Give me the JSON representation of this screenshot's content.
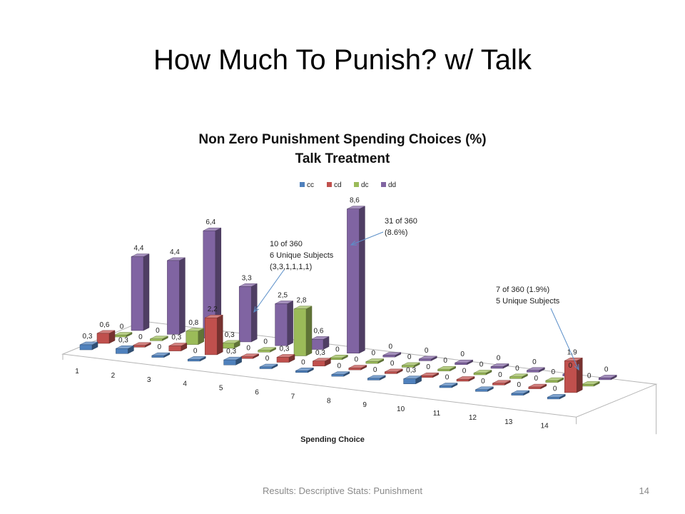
{
  "slide": {
    "title": "How Much To Punish? w/ Talk",
    "footer": "Results: Descriptive Stats: Punishment",
    "page_number": "14"
  },
  "chart_data": {
    "type": "bar",
    "subtype": "3d-column",
    "title": "Non Zero Punishment Spending Choices (%)",
    "subtitle": "Talk Treatment",
    "xlabel": "Spending Choice",
    "categories": [
      "1",
      "2",
      "3",
      "4",
      "5",
      "6",
      "7",
      "8",
      "9",
      "10",
      "11",
      "12",
      "13",
      "14"
    ],
    "series": [
      {
        "name": "cc",
        "color": "#4f81bd",
        "values": [
          0.3,
          0.3,
          0,
          0,
          0.3,
          0,
          0,
          0,
          0,
          0.3,
          0,
          0,
          0,
          0
        ],
        "labels": [
          "0,3",
          "0,3",
          "0",
          "0",
          "0,3",
          "0",
          "0",
          "0",
          "0",
          "0,3",
          "0",
          "0",
          "0",
          "0"
        ]
      },
      {
        "name": "cd",
        "color": "#c0504d",
        "values": [
          0.6,
          0,
          0.3,
          2.2,
          0,
          0.3,
          0.3,
          0,
          0,
          0,
          0,
          0,
          0,
          1.9
        ],
        "labels": [
          "0,6",
          "0",
          "0,3",
          "2,2",
          "0",
          "0,3",
          "0,3",
          "0",
          "0",
          "0",
          "0",
          "0",
          "0",
          "1,9"
        ]
      },
      {
        "name": "dc",
        "color": "#9bbb59",
        "values": [
          0,
          0,
          0.8,
          0.3,
          0,
          2.8,
          0,
          0,
          0,
          0,
          0,
          0,
          0,
          0
        ],
        "labels": [
          "0",
          "0",
          "0,8",
          "0,3",
          "0",
          "2,8",
          "0",
          "0",
          "0",
          "0",
          "0",
          "0",
          "0",
          "0"
        ]
      },
      {
        "name": "dd",
        "color": "#8064a2",
        "values": [
          4.4,
          4.4,
          6.4,
          3.3,
          2.5,
          0.6,
          8.6,
          0,
          0,
          0,
          0,
          0,
          0,
          0
        ],
        "labels": [
          "4,4",
          "4,4",
          "6,4",
          "3,3",
          "2,5",
          "0,6",
          "8,6",
          "0",
          "0",
          "0",
          "0",
          "0",
          "0",
          "0"
        ]
      }
    ],
    "legend": {
      "position": "top"
    },
    "annotations": [
      {
        "lines": [
          "31 of 360",
          "(8.6%)"
        ]
      },
      {
        "lines": [
          "10 of 360",
          "6 Unique Subjects",
          "(3,3,1,1,1,1)"
        ]
      },
      {
        "lines": [
          "7 of 360 (1.9%)",
          "5 Unique Subjects"
        ]
      }
    ]
  }
}
